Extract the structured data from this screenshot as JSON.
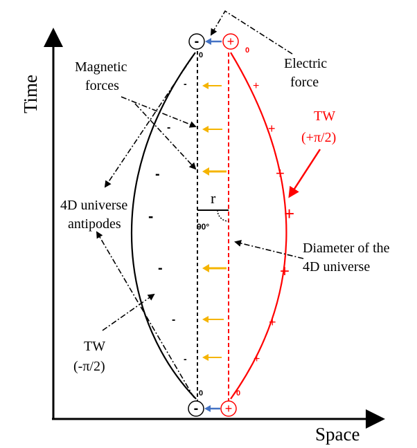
{
  "axes": {
    "x_label": "Space",
    "y_label": "Time"
  },
  "labels": {
    "magnetic_forces_line1": "Magnetic",
    "magnetic_forces_line2": "forces",
    "electric_force_line1": "Electric",
    "electric_force_line2": "force",
    "tw_pos_line1": "TW",
    "tw_pos_line2": "(+π/2)",
    "tw_neg_line1": "TW",
    "tw_neg_line2": "(-π/2)",
    "antipodes_line1": "4D universe",
    "antipodes_line2": "antipodes",
    "diameter_line1": "Diameter of the",
    "diameter_line2": "4D universe",
    "radius": "r",
    "angle": "90°",
    "zero": "0"
  },
  "signs": {
    "minus": "-",
    "plus": "+",
    "minus_circle": "-",
    "plus_circle": "+"
  },
  "colors": {
    "black": "#000000",
    "red": "#ff0000",
    "magnetic_arrow": "#f5b400",
    "electric_arrow": "#4472c4"
  }
}
